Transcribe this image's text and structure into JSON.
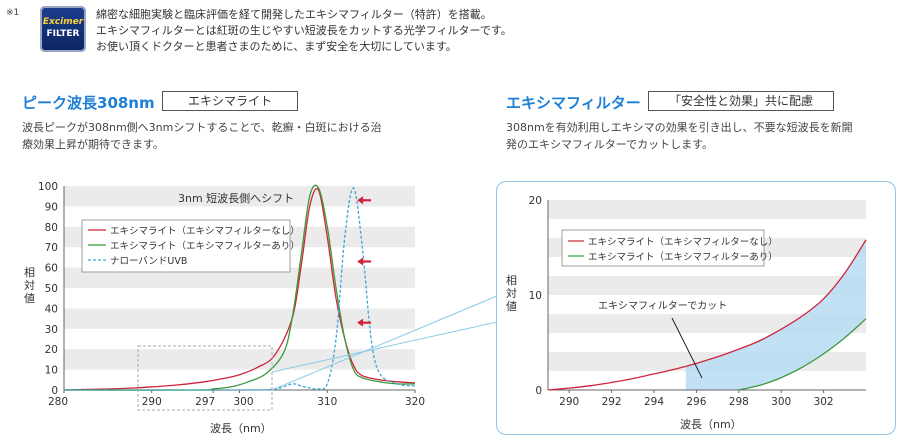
{
  "note": {
    "mark": "※1",
    "badge_line1": "Excimer",
    "badge_line2": "FILTER",
    "lines": [
      "綿密な細胞実験と臨床評価を経て開発したエキシマフィルター（特許）を搭載。",
      "エキシマフィルターとは紅斑の生じやすい短波長をカットする光学フィルターです。",
      "お使い頂くドクターと患者さまのために、まず安全を大切にしています。"
    ]
  },
  "left_section": {
    "title": "ピーク波長308nm",
    "box_label": "エキシマライト",
    "desc_lines": [
      "波長ピークが308nm側へ3nmシフトすることで、乾癬・白斑における治",
      "療効果上昇が期待できます。"
    ]
  },
  "right_section": {
    "title": "エキシマフィルター",
    "box_label": "「安全性と効果」共に配慮",
    "desc_lines": [
      "308nmを有効利用しエキシマの効果を引き出し、不要な短波長を新開",
      "発のエキシマフィルターでカットします。"
    ]
  },
  "colors": {
    "accent": "#1d7fd6",
    "series_red": "#d0243b",
    "series_green": "#3a9a3c",
    "series_blue": "#3aa6d8",
    "arrow_red": "#d0243b",
    "frame": "#8ccbe6"
  },
  "chart_data": [
    {
      "type": "line",
      "title": "",
      "xlabel": "波長（nm）",
      "ylabel": "相対値",
      "xlim": [
        280,
        320
      ],
      "ylim": [
        0,
        100
      ],
      "x_ticks": [
        280,
        290,
        297,
        300,
        310,
        320
      ],
      "x_tick_labels": [
        "280",
        "290",
        "297",
        "300",
        "310",
        "320"
      ],
      "y_ticks": [
        0,
        10,
        20,
        30,
        40,
        50,
        60,
        70,
        80,
        90,
        100
      ],
      "y_tick_labels": [
        "0",
        "10",
        "20",
        "30",
        "40",
        "50",
        "60",
        "70",
        "80",
        "90",
        "100"
      ],
      "grid": "horizontal bands",
      "legend_position": "upper-left",
      "annotation": "3nm 短波長側へシフト",
      "series": [
        {
          "name": "エキシマライト（エキシマフィルターなし）",
          "style": "solid",
          "color_key": "series_red",
          "x": [
            280,
            285,
            288,
            290,
            293,
            296,
            298,
            300,
            302,
            304,
            306,
            307,
            308,
            309,
            310,
            311,
            312,
            313,
            314,
            316,
            318,
            320
          ],
          "y": [
            0,
            0.5,
            1,
            1.5,
            2.5,
            4,
            5.5,
            7.5,
            11,
            17,
            35,
            60,
            90,
            98,
            75,
            45,
            25,
            12,
            7,
            5,
            4,
            3.5
          ]
        },
        {
          "name": "エキシマライト（エキシマフィルターあり）",
          "style": "solid",
          "color_key": "series_green",
          "x": [
            280,
            295,
            297,
            299,
            301,
            303,
            305,
            306,
            307,
            308,
            309,
            310,
            311,
            312,
            313,
            314,
            316,
            318,
            320
          ],
          "y": [
            0,
            0,
            0.5,
            1.5,
            4,
            8,
            18,
            35,
            65,
            95,
            99,
            80,
            50,
            25,
            10,
            6,
            4,
            3,
            3
          ]
        },
        {
          "name": "ナローバンドUVB",
          "style": "dashed",
          "color_key": "series_blue",
          "x": [
            280,
            300,
            304,
            306,
            307,
            308,
            309,
            310,
            311,
            312,
            313,
            314,
            315,
            316,
            318,
            320
          ],
          "y": [
            0,
            0,
            0.5,
            3,
            2,
            1,
            0.5,
            3,
            25,
            75,
            99,
            70,
            25,
            8,
            3,
            2
          ]
        }
      ],
      "shift_arrows_y": [
        93,
        63,
        33
      ]
    },
    {
      "type": "line",
      "title": "",
      "xlabel": "波長（nm）",
      "ylabel": "相対値",
      "xlim": [
        289,
        304
      ],
      "ylim": [
        0,
        20
      ],
      "x_ticks": [
        290,
        292,
        294,
        296,
        298,
        300,
        302
      ],
      "x_tick_labels": [
        "290",
        "292",
        "294",
        "296",
        "298",
        "300",
        "302"
      ],
      "y_ticks": [
        0,
        10,
        20
      ],
      "y_tick_labels": [
        "0",
        "10",
        "20"
      ],
      "grid": "horizontal bands",
      "legend_position": "upper-left",
      "annotation": "エキシマフィルターでカット",
      "series": [
        {
          "name": "エキシマライト（エキシマフィルターなし）",
          "style": "solid",
          "color_key": "series_red",
          "x": [
            289,
            290,
            291,
            292,
            293,
            294,
            295,
            296,
            297,
            298,
            299,
            300,
            301,
            302,
            303,
            304
          ],
          "y": [
            0,
            0.2,
            0.45,
            0.8,
            1.2,
            1.7,
            2.2,
            2.8,
            3.5,
            4.3,
            5.2,
            6.4,
            7.8,
            9.6,
            12.3,
            15.8
          ]
        },
        {
          "name": "エキシマライト（エキシマフィルターあり）",
          "style": "solid",
          "color_key": "series_green",
          "x": [
            298,
            299,
            300,
            301,
            302,
            303,
            304
          ],
          "y": [
            0,
            0.5,
            1.3,
            2.4,
            3.8,
            5.5,
            7.5
          ]
        }
      ]
    }
  ]
}
